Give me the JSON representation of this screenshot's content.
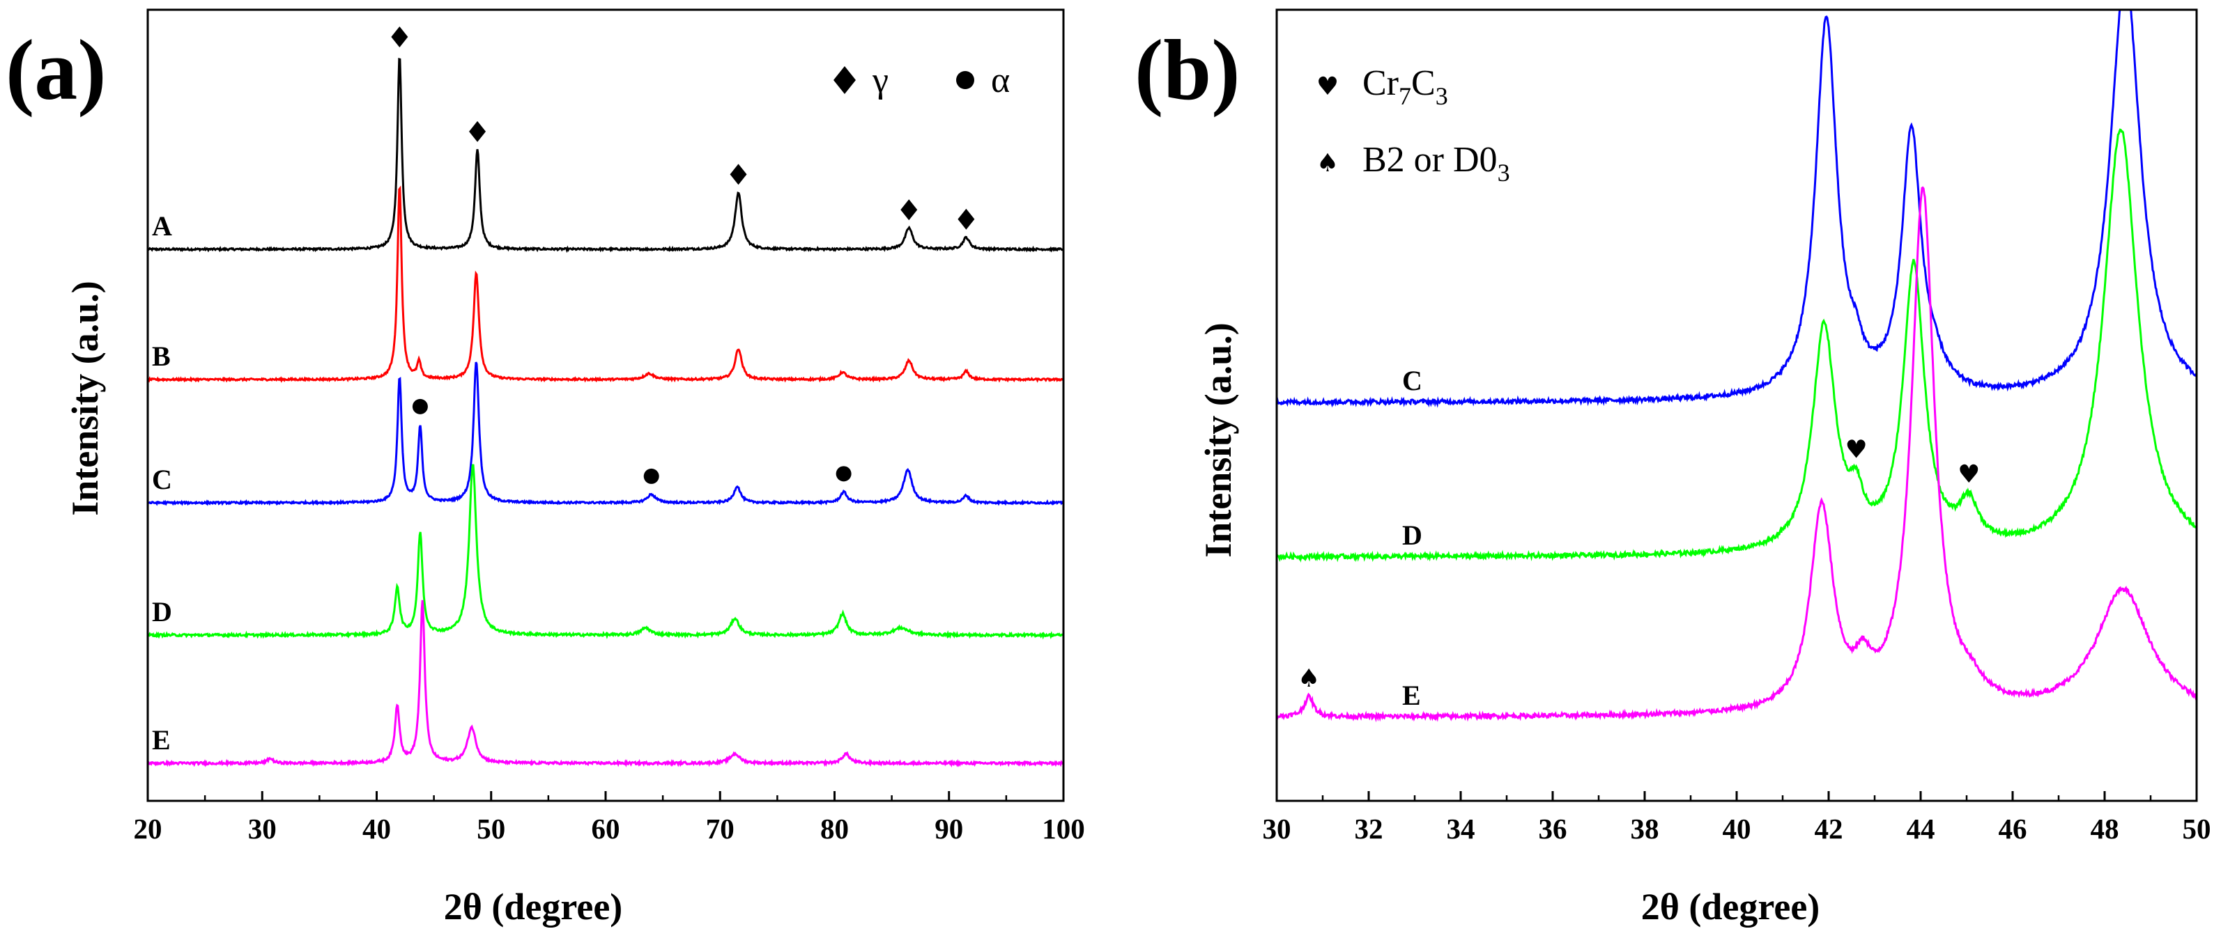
{
  "chart_data": [
    {
      "type": "line",
      "panel": "(a)",
      "xlabel": "2θ (degree)",
      "ylabel": "Intensity (a.u.)",
      "xlim": [
        20,
        100
      ],
      "xticks": [
        20,
        30,
        40,
        50,
        60,
        70,
        80,
        90,
        100
      ],
      "legend": [
        {
          "symbol": "diamond",
          "label": "γ"
        },
        {
          "symbol": "circle",
          "label": "α"
        }
      ],
      "legend_position": "top-right",
      "series": [
        {
          "name": "A",
          "color": "#000000",
          "baseline": 0.0,
          "noise": 0.08,
          "peaks": [
            [
              42.0,
              8.2,
              0.22
            ],
            [
              48.8,
              4.2,
              0.25
            ],
            [
              71.6,
              2.4,
              0.35
            ],
            [
              86.5,
              0.9,
              0.4
            ],
            [
              91.5,
              0.5,
              0.35
            ]
          ]
        },
        {
          "name": "B",
          "color": "#ff0000",
          "baseline": 0.0,
          "noise": 0.08,
          "peaks": [
            [
              42.0,
              8.2,
              0.22
            ],
            [
              43.7,
              0.7,
              0.2
            ],
            [
              48.7,
              4.5,
              0.28
            ],
            [
              63.8,
              0.25,
              0.5
            ],
            [
              71.6,
              1.3,
              0.35
            ],
            [
              80.7,
              0.3,
              0.4
            ],
            [
              86.5,
              0.8,
              0.4
            ],
            [
              91.5,
              0.35,
              0.3
            ]
          ]
        },
        {
          "name": "C",
          "color": "#0000ff",
          "baseline": 0.0,
          "noise": 0.08,
          "peaks": [
            [
              42.0,
              5.3,
              0.22
            ],
            [
              43.8,
              3.2,
              0.22
            ],
            [
              48.7,
              6.0,
              0.28
            ],
            [
              64.0,
              0.35,
              0.45
            ],
            [
              71.5,
              0.7,
              0.35
            ],
            [
              80.8,
              0.45,
              0.35
            ],
            [
              86.4,
              1.4,
              0.45
            ],
            [
              91.5,
              0.3,
              0.3
            ]
          ]
        },
        {
          "name": "D",
          "color": "#00ff00",
          "baseline": 0.0,
          "noise": 0.1,
          "peaks": [
            [
              41.8,
              2.0,
              0.25
            ],
            [
              43.8,
              4.3,
              0.25
            ],
            [
              48.4,
              7.2,
              0.38
            ],
            [
              63.5,
              0.3,
              0.5
            ],
            [
              71.3,
              0.7,
              0.45
            ],
            [
              80.7,
              0.9,
              0.4
            ],
            [
              85.8,
              0.3,
              0.8
            ]
          ]
        },
        {
          "name": "E",
          "color": "#ff00ff",
          "baseline": 0.0,
          "noise": 0.1,
          "peaks": [
            [
              30.7,
              0.2,
              0.3
            ],
            [
              41.8,
              2.4,
              0.25
            ],
            [
              44.0,
              6.8,
              0.25
            ],
            [
              48.3,
              1.5,
              0.45
            ],
            [
              71.3,
              0.4,
              0.5
            ],
            [
              81.0,
              0.4,
              0.4
            ]
          ]
        }
      ],
      "peak_markers": [
        {
          "series": "A",
          "type": "diamond",
          "x": [
            42.0,
            48.8,
            71.6,
            86.5,
            91.5
          ]
        },
        {
          "series": "C",
          "type": "circle",
          "x": [
            43.8,
            64.0,
            80.8
          ]
        }
      ]
    },
    {
      "type": "line",
      "panel": "(b)",
      "xlabel": "2θ (degree)",
      "ylabel": "Intensity (a.u.)",
      "xlim": [
        30,
        50
      ],
      "xticks": [
        30,
        32,
        34,
        36,
        38,
        40,
        42,
        44,
        46,
        48,
        50
      ],
      "legend": [
        {
          "symbol": "heart",
          "label": "Cr",
          "sub1": "7",
          "mid": "C",
          "sub2": "3"
        },
        {
          "symbol": "spade",
          "label": "B2 or D0",
          "sub1": "3",
          "mid": "",
          "sub2": ""
        }
      ],
      "legend_position": "top-left",
      "series": [
        {
          "name": "C",
          "color": "#0000ff",
          "noise": 0.18,
          "peaks": [
            [
              41.95,
              16.0,
              0.28
            ],
            [
              43.8,
              11.0,
              0.25
            ],
            [
              48.45,
              18.0,
              0.4
            ],
            [
              42.6,
              0.9,
              0.15
            ],
            [
              44.3,
              0.8,
              0.3
            ]
          ]
        },
        {
          "name": "D",
          "color": "#00ff00",
          "noise": 0.18,
          "peaks": [
            [
              41.9,
              9.5,
              0.3
            ],
            [
              42.6,
              1.6,
              0.18
            ],
            [
              43.85,
              12.0,
              0.28
            ],
            [
              45.05,
              1.7,
              0.25
            ],
            [
              48.35,
              18.0,
              0.45
            ]
          ]
        },
        {
          "name": "E",
          "color": "#ff00ff",
          "noise": 0.18,
          "peaks": [
            [
              30.7,
              0.85,
              0.12
            ],
            [
              41.85,
              8.6,
              0.3
            ],
            [
              42.75,
              1.3,
              0.2
            ],
            [
              44.05,
              22.0,
              0.3
            ],
            [
              45.1,
              0.6,
              0.3
            ],
            [
              48.4,
              5.3,
              0.7
            ]
          ]
        }
      ],
      "peak_markers": [
        {
          "series": "D",
          "type": "heart",
          "x": [
            42.6,
            45.05
          ]
        },
        {
          "series": "E",
          "type": "spade",
          "x": [
            30.7
          ]
        }
      ]
    }
  ]
}
